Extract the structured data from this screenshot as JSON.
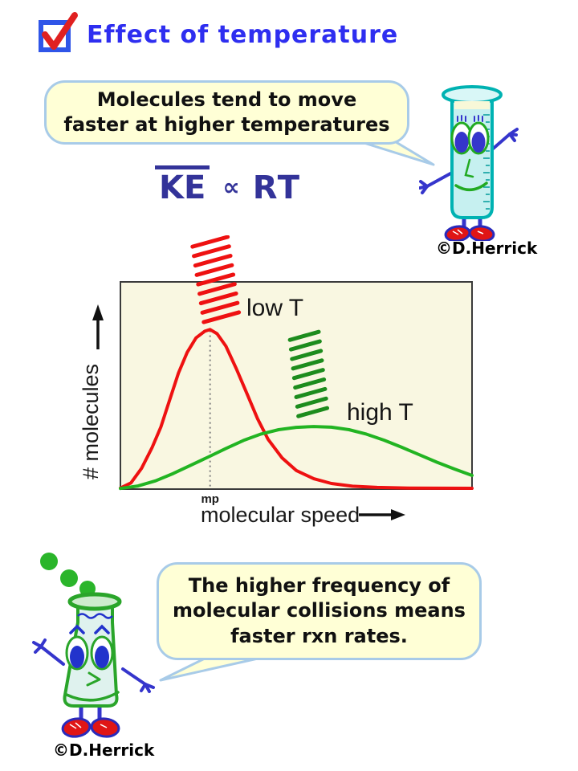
{
  "slide": {
    "title": "Effect of temperature",
    "credit_top_right": "©D.Herrick",
    "credit_bottom_left": "©D.Herrick"
  },
  "bubbles": {
    "top": {
      "text": "Molecules tend to move faster at higher temperatures"
    },
    "bottom": {
      "text": "The higher frequency of molecular collisions means faster rxn rates."
    }
  },
  "formula": {
    "lhs": "KE",
    "relation": "∝",
    "rhs": "RT"
  },
  "colors": {
    "title_blue": "#2e2ef0",
    "formula_navy": "#333399",
    "bubble_fill": "#ffffd6",
    "bubble_border": "#a8cbe8",
    "checkbox_blue": "#2f55e8",
    "check_red": "#e02020",
    "chart_background": "#f9f7e1",
    "low_t_red": "#ee1111",
    "high_t_green": "#22b422",
    "high_t_hatch_green": "#1d8c1d",
    "marker_gray": "#808080",
    "test_tube_teal": "#00b2b2",
    "flask_green": "#2aa52a",
    "limb_blue": "#3535cc",
    "shoe_red": "#e01515"
  },
  "chart_data": {
    "type": "line",
    "title": "",
    "xlabel": "molecular speed",
    "ylabel": "# molecules",
    "x_axis_arrow": true,
    "y_axis_arrow": true,
    "axes_numeric": false,
    "grid": false,
    "background": "#f9f7e1",
    "border_color": "#3b3b3b",
    "series": [
      {
        "name": "low T",
        "color": "#ee1111",
        "points": [
          [
            0,
            0.005
          ],
          [
            0.03,
            0.03
          ],
          [
            0.06,
            0.1
          ],
          [
            0.09,
            0.2
          ],
          [
            0.115,
            0.3
          ],
          [
            0.14,
            0.43
          ],
          [
            0.165,
            0.56
          ],
          [
            0.19,
            0.66
          ],
          [
            0.215,
            0.73
          ],
          [
            0.24,
            0.762
          ],
          [
            0.255,
            0.77
          ],
          [
            0.275,
            0.75
          ],
          [
            0.3,
            0.69
          ],
          [
            0.33,
            0.58
          ],
          [
            0.36,
            0.46
          ],
          [
            0.39,
            0.34
          ],
          [
            0.42,
            0.24
          ],
          [
            0.46,
            0.15
          ],
          [
            0.5,
            0.09
          ],
          [
            0.55,
            0.05
          ],
          [
            0.6,
            0.027
          ],
          [
            0.66,
            0.014
          ],
          [
            0.73,
            0.008
          ],
          [
            0.82,
            0.005
          ],
          [
            1,
            0.004
          ]
        ]
      },
      {
        "name": "high T",
        "color": "#22b422",
        "points": [
          [
            0,
            0.003
          ],
          [
            0.05,
            0.015
          ],
          [
            0.1,
            0.04
          ],
          [
            0.15,
            0.075
          ],
          [
            0.2,
            0.115
          ],
          [
            0.25,
            0.155
          ],
          [
            0.3,
            0.196
          ],
          [
            0.35,
            0.235
          ],
          [
            0.4,
            0.266
          ],
          [
            0.45,
            0.287
          ],
          [
            0.5,
            0.298
          ],
          [
            0.55,
            0.302
          ],
          [
            0.6,
            0.299
          ],
          [
            0.65,
            0.287
          ],
          [
            0.7,
            0.265
          ],
          [
            0.75,
            0.236
          ],
          [
            0.8,
            0.202
          ],
          [
            0.85,
            0.166
          ],
          [
            0.9,
            0.13
          ],
          [
            0.95,
            0.097
          ],
          [
            1,
            0.066
          ]
        ]
      }
    ],
    "marker_line": {
      "x": 0.255,
      "y_top": 0.765,
      "label": "mp",
      "style": "dashed",
      "color": "#808080"
    },
    "annotations": [
      {
        "type": "hatch",
        "label_for": "low T",
        "color": "#ee1111",
        "count": 9,
        "x0": 0.205,
        "y0": 1.17,
        "step_x": 0.004,
        "step_y": -0.0455,
        "len_x": 0.1,
        "len_y": 0.047
      },
      {
        "type": "hatch",
        "label_for": "high T",
        "color": "#1d8c1d",
        "count": 9,
        "x0": 0.482,
        "y0": 0.72,
        "step_x": 0.003,
        "step_y": -0.046,
        "len_x": 0.082,
        "len_y": 0.039
      }
    ]
  }
}
